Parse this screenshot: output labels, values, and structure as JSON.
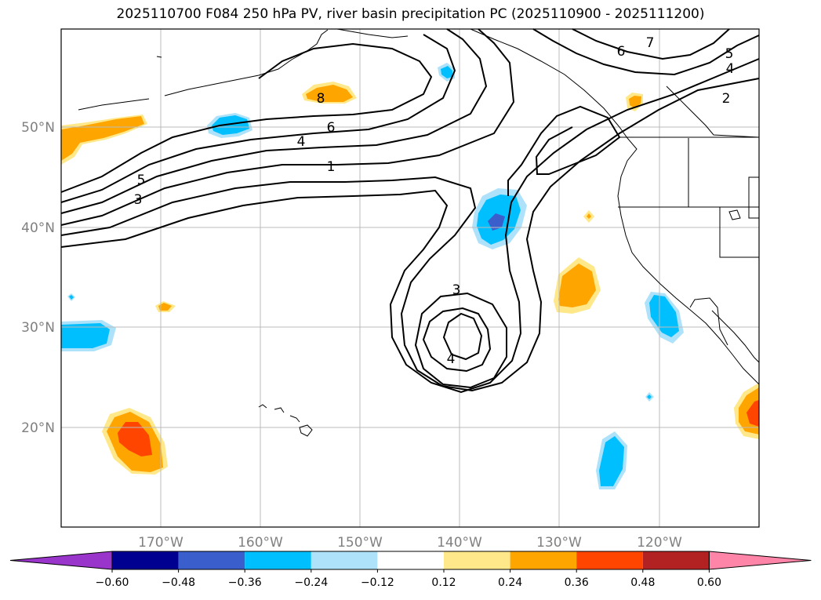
{
  "title": "2025110700 F084 250 hPa PV, river basin precipitation PC (2025110900 - 2025111200)",
  "map": {
    "lat_labels": [
      {
        "value": 50,
        "text": "50°N"
      },
      {
        "value": 40,
        "text": "40°N"
      },
      {
        "value": 30,
        "text": "30°N"
      },
      {
        "value": 20,
        "text": "20°N"
      }
    ],
    "lon_labels": [
      {
        "value": -170,
        "text": "170°W"
      },
      {
        "value": -160,
        "text": "160°W"
      },
      {
        "value": -150,
        "text": "150°W"
      },
      {
        "value": -140,
        "text": "140°W"
      },
      {
        "value": -130,
        "text": "130°W"
      },
      {
        "value": -120,
        "text": "120°W"
      }
    ],
    "contour_labels": [
      "7",
      "6",
      "5",
      "4",
      "2",
      "8",
      "6",
      "4",
      "1",
      "5",
      "3",
      "3",
      "4"
    ]
  },
  "colorbar": {
    "colors": [
      "#9a35cc",
      "#000090",
      "#3a5fcd",
      "#00bfff",
      "#aee2fa",
      "#ffffff",
      "#ffe88a",
      "#ffa500",
      "#ff4500",
      "#b22222",
      "#ff85a8"
    ],
    "ticks": [
      "−0.60",
      "−0.48",
      "−0.36",
      "−0.24",
      "−0.12",
      "0.12",
      "0.24",
      "0.36",
      "0.48",
      "0.60"
    ]
  }
}
